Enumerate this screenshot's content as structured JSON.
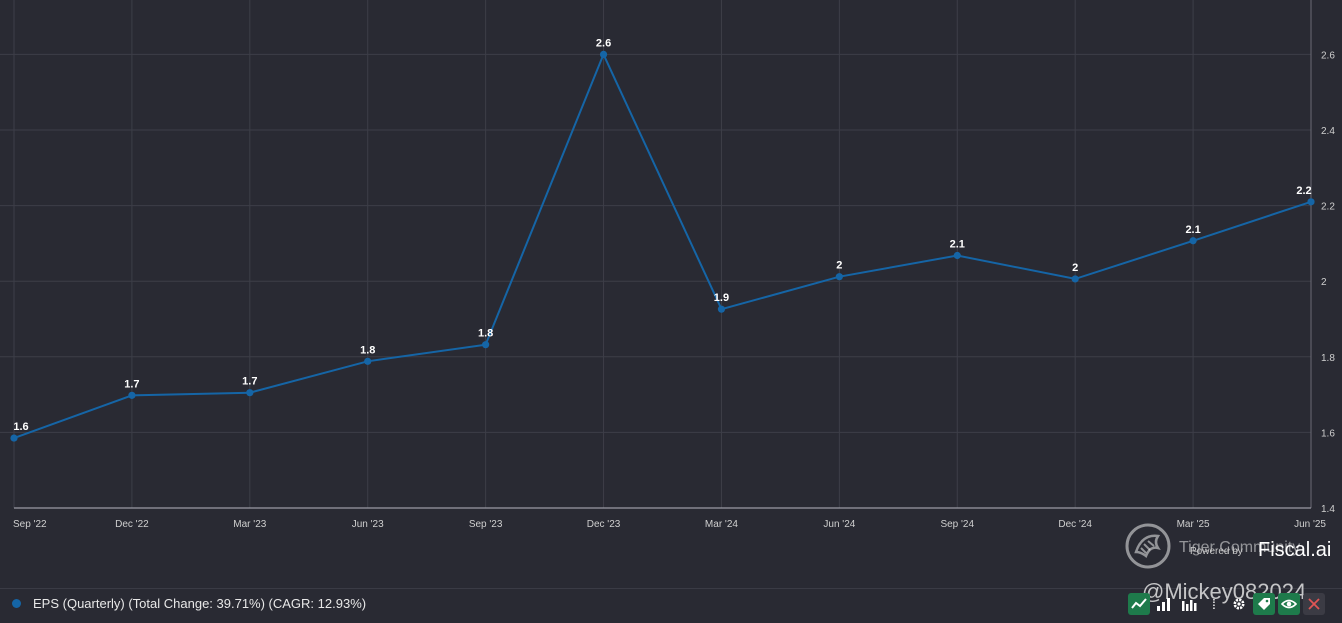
{
  "chart_data": {
    "type": "line",
    "categories": [
      "Sep '22",
      "Dec '22",
      "Mar '23",
      "Jun '23",
      "Sep '23",
      "Dec '23",
      "Mar '24",
      "Jun '24",
      "Sep '24",
      "Dec '24",
      "Mar '25",
      "Jun '25"
    ],
    "series": [
      {
        "name": "EPS (Quarterly) (Total Change: 39.71%) (CAGR: 12.93%)",
        "values": [
          1.585,
          1.698,
          1.705,
          1.788,
          1.832,
          2.6,
          1.926,
          2.012,
          2.068,
          2.006,
          2.107,
          2.21
        ],
        "labels": [
          "1.6",
          "1.7",
          "1.7",
          "1.8",
          "1.8",
          "2.6",
          "1.9",
          "2",
          "2.1",
          "2",
          "2.1",
          "2.2"
        ],
        "color": "#1565a6"
      }
    ],
    "ylim": [
      1.4,
      2.7
    ],
    "yticks": [
      1.4,
      1.6,
      1.8,
      2,
      2.2,
      2.4,
      2.6
    ],
    "ytick_labels": [
      "1.4",
      "1.6",
      "1.8",
      "2",
      "2.2",
      "2.4",
      "2.6"
    ],
    "y_axis_position": "right",
    "grid": true,
    "legend_position": "bottom-left",
    "title": "",
    "xlabel": "",
    "ylabel": ""
  },
  "branding": {
    "powered_by": "Powered by",
    "brand_name": "Fiscal.ai"
  },
  "watermark": {
    "community": "Tiger Community",
    "handle": "@Mickey082024",
    "logo_icon": "tiger-logo-icon"
  },
  "toolbar": {
    "icons": [
      "line-chart-icon",
      "bar-chart-icon",
      "grouped-bar-chart-icon",
      "more-icon",
      "gear-icon",
      "tag-icon",
      "eye-icon",
      "close-icon"
    ],
    "more_label": "⁞",
    "accent": "#1e7a4b",
    "close_bg": "#3b3b44"
  },
  "colors": {
    "background": "#292a33",
    "grid": "#3d3e48",
    "axis_text": "#cfcfcf",
    "line": "#1565a6"
  }
}
